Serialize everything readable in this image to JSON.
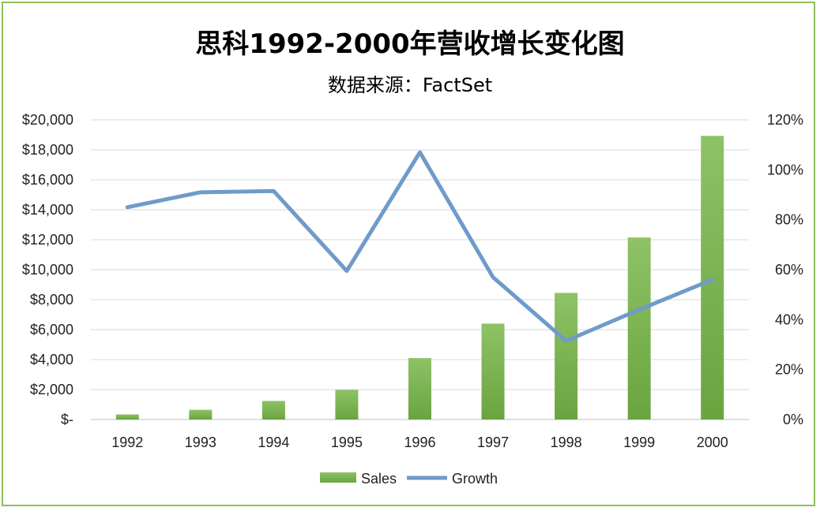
{
  "chart_data": {
    "type": "bar",
    "title": "思科1992-2000年营收增长变化图",
    "subtitle": "数据来源：FactSet",
    "categories": [
      "1992",
      "1993",
      "1994",
      "1995",
      "1996",
      "1997",
      "1998",
      "1999",
      "2000"
    ],
    "series": [
      {
        "name": "Sales",
        "type": "bar",
        "axis": "left",
        "color": "#79b04c",
        "values": [
          340,
          650,
          1240,
          1980,
          4100,
          6400,
          8450,
          12150,
          18930
        ]
      },
      {
        "name": "Growth",
        "type": "line",
        "axis": "right",
        "color": "#6f9bca",
        "values": [
          0.85,
          0.91,
          0.915,
          0.595,
          1.07,
          0.57,
          0.315,
          0.44,
          0.56
        ]
      }
    ],
    "y_left": {
      "min": 0,
      "max": 20000,
      "step": 2000,
      "tick_labels": [
        "$-",
        "$2,000",
        "$4,000",
        "$6,000",
        "$8,000",
        "$10,000",
        "$12,000",
        "$14,000",
        "$16,000",
        "$18,000",
        "$20,000"
      ]
    },
    "y_right": {
      "min": 0,
      "max": 1.2,
      "step": 0.2,
      "tick_labels": [
        "0%",
        "20%",
        "40%",
        "60%",
        "80%",
        "100%",
        "120%"
      ]
    },
    "grid": true,
    "legend_position": "bottom"
  }
}
